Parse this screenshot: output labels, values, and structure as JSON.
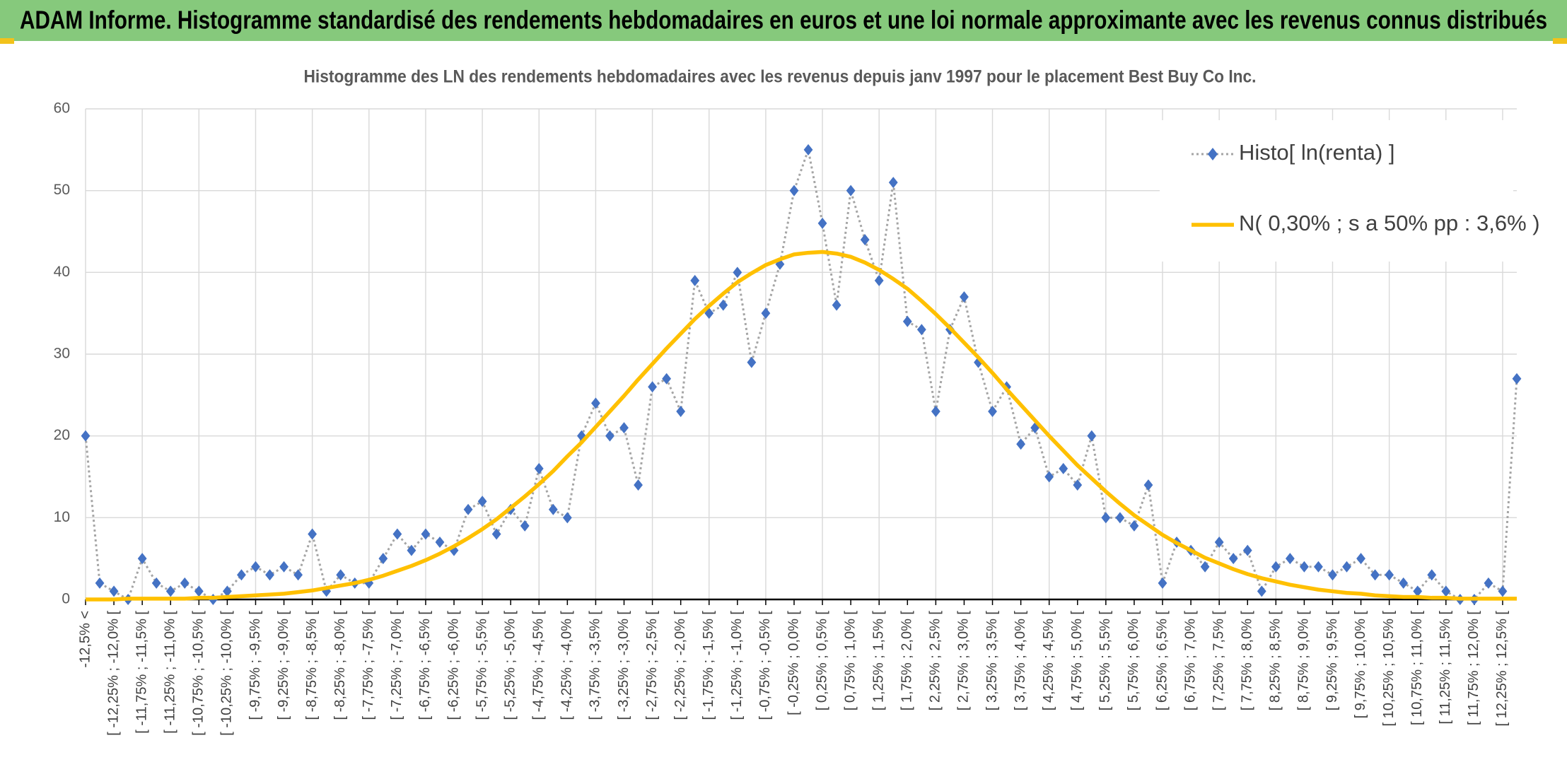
{
  "header": {
    "title": "ADAM Informe. Histogramme standardisé des rendements hebdomadaires en euros et une loi normale approximante avec les revenus connus distribués"
  },
  "chart_data": {
    "type": "line",
    "title": "Histogramme des LN des rendements hebdomadaires avec les revenus depuis janv 1997 pour le placement Best Buy Co Inc.",
    "categories": [
      "-12,5% <",
      null,
      "[ -12,25% ; -12,0% [",
      null,
      "[ -11,75% ; -11,5% [",
      null,
      "[ -11,25% ; -11,0% [",
      null,
      "[ -10,75% ; -10,5% [",
      null,
      "[ -10,25% ; -10,0% [",
      null,
      "[ -9,75% ; -9,5% [",
      null,
      "[ -9,25% ; -9,0% [",
      null,
      "[ -8,75% ; -8,5% [",
      null,
      "[ -8,25% ; -8,0% [",
      null,
      "[ -7,75% ; -7,5% [",
      null,
      "[ -7,25% ; -7,0% [",
      null,
      "[ -6,75% ; -6,5% [",
      null,
      "[ -6,25% ; -6,0% [",
      null,
      "[ -5,75% ; -5,5% [",
      null,
      "[ -5,25% ; -5,0% [",
      null,
      "[ -4,75% ; -4,5% [",
      null,
      "[ -4,25% ; -4,0% [",
      null,
      "[ -3,75% ; -3,5% [",
      null,
      "[ -3,25% ; -3,0% [",
      null,
      "[ -2,75% ; -2,5% [",
      null,
      "[ -2,25% ; -2,0% [",
      null,
      "[ -1,75% ; -1,5% [",
      null,
      "[ -1,25% ; -1,0% [",
      null,
      "[ -0,75% ; -0,5% [",
      null,
      "[ -0,25% ; 0,0% [",
      null,
      "[ 0,25% ; 0,5% [",
      null,
      "[ 0,75% ; 1,0% [",
      null,
      "[ 1,25% ; 1,5% [",
      null,
      "[ 1,75% ; 2,0% [",
      null,
      "[ 2,25% ; 2,5% [",
      null,
      "[ 2,75% ; 3,0% [",
      null,
      "[ 3,25% ; 3,5% [",
      null,
      "[ 3,75% ; 4,0% [",
      null,
      "[ 4,25% ; 4,5% [",
      null,
      "[ 4,75% ; 5,0% [",
      null,
      "[ 5,25% ; 5,5% [",
      null,
      "[ 5,75% ; 6,0% [",
      null,
      "[ 6,25% ; 6,5% [",
      null,
      "[ 6,75% ; 7,0% [",
      null,
      "[ 7,25% ; 7,5% [",
      null,
      "[ 7,75% ; 8,0% [",
      null,
      "[ 8,25% ; 8,5% [",
      null,
      "[ 8,75% ; 9,0% [",
      null,
      "[ 9,25% ; 9,5% [",
      null,
      "[ 9,75% ; 10,0% [",
      null,
      "[ 10,25% ; 10,5% [",
      null,
      "[ 10,75% ; 11,0% [",
      null,
      "[ 11,25% ; 11,5% [",
      null,
      "[ 11,75% ; 12,0% [",
      null,
      "[ 12,25% ; 12,5% [",
      null
    ],
    "series": [
      {
        "name": "Histo[ ln(renta) ]",
        "color": "#4472c4",
        "line_color": "#a5a5a5",
        "marker": "diamond",
        "values": [
          20,
          2,
          1,
          0,
          5,
          2,
          1,
          2,
          1,
          0,
          1,
          3,
          4,
          3,
          4,
          3,
          8,
          1,
          3,
          2,
          2,
          5,
          8,
          6,
          8,
          7,
          6,
          11,
          12,
          8,
          11,
          9,
          16,
          11,
          10,
          20,
          24,
          20,
          21,
          14,
          26,
          27,
          23,
          39,
          35,
          36,
          40,
          29,
          35,
          41,
          50,
          55,
          46,
          36,
          50,
          44,
          39,
          51,
          34,
          33,
          23,
          33,
          37,
          29,
          23,
          26,
          19,
          21,
          15,
          16,
          14,
          20,
          10,
          10,
          9,
          14,
          2,
          7,
          6,
          4,
          7,
          5,
          6,
          1,
          4,
          5,
          4,
          4,
          3,
          4,
          5,
          3,
          3,
          2,
          1,
          3,
          1,
          0,
          0,
          2,
          1,
          27
        ]
      },
      {
        "name": "N( 0,30% ; s a 50% pp : 3,6% )",
        "color": "#ffc000",
        "values": [
          0.0,
          0.0,
          0.0,
          0.1,
          0.1,
          0.1,
          0.1,
          0.1,
          0.2,
          0.2,
          0.3,
          0.4,
          0.5,
          0.6,
          0.7,
          0.9,
          1.1,
          1.4,
          1.7,
          2.0,
          2.4,
          2.9,
          3.5,
          4.1,
          4.8,
          5.6,
          6.5,
          7.5,
          8.6,
          9.8,
          11.2,
          12.6,
          14.1,
          15.7,
          17.5,
          19.2,
          21.1,
          23.0,
          24.9,
          26.9,
          28.8,
          30.7,
          32.5,
          34.3,
          35.9,
          37.4,
          38.8,
          39.9,
          40.9,
          41.6,
          42.2,
          42.4,
          42.5,
          42.3,
          41.9,
          41.2,
          40.3,
          39.2,
          38.0,
          36.5,
          34.9,
          33.2,
          31.4,
          29.6,
          27.7,
          25.7,
          23.8,
          21.9,
          20.0,
          18.2,
          16.4,
          14.8,
          13.2,
          11.7,
          10.3,
          9.1,
          7.9,
          6.9,
          6.0,
          5.1,
          4.4,
          3.7,
          3.1,
          2.6,
          2.2,
          1.8,
          1.5,
          1.2,
          1.0,
          0.8,
          0.7,
          0.5,
          0.4,
          0.3,
          0.3,
          0.2,
          0.2,
          0.1,
          0.1,
          0.1,
          0.1,
          0.1
        ]
      }
    ],
    "ylim": [
      0,
      60
    ],
    "yticks": [
      0,
      10,
      20,
      30,
      40,
      50,
      60
    ],
    "grid": true,
    "legend": "upper right"
  }
}
